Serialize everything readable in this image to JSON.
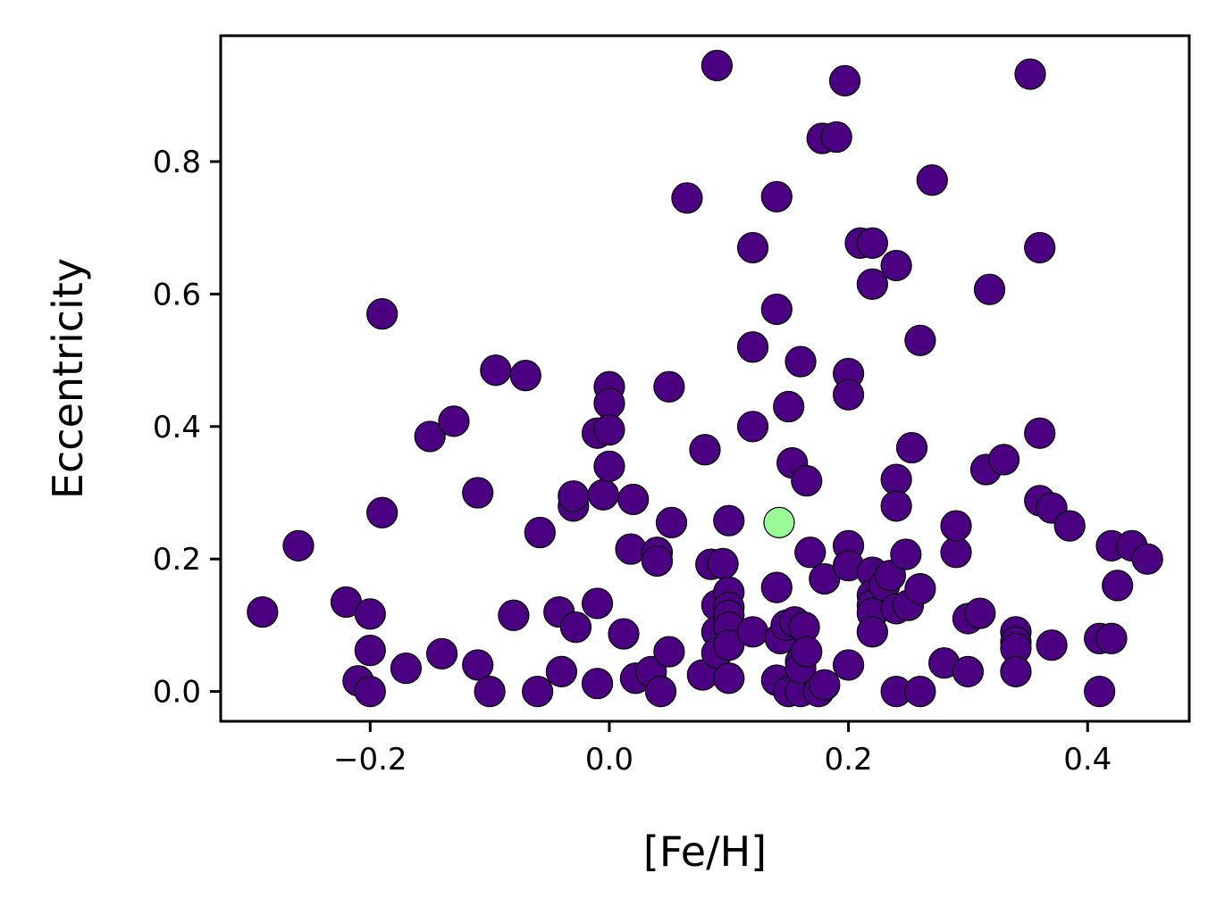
{
  "chart_data": {
    "type": "scatter",
    "title": "",
    "xlabel": "[Fe/H]",
    "ylabel": "Eccentricity",
    "xlim": [
      -0.325,
      0.485
    ],
    "ylim": [
      -0.045,
      0.99
    ],
    "xticks": [
      -0.2,
      0.0,
      0.2,
      0.4
    ],
    "xtick_labels": [
      "−0.2",
      "0.0",
      "0.2",
      "0.4"
    ],
    "yticks": [
      0.0,
      0.2,
      0.4,
      0.6,
      0.8
    ],
    "ytick_labels": [
      "0.0",
      "0.2",
      "0.4",
      "0.6",
      "0.8"
    ],
    "grid": false,
    "series": [
      {
        "color": "#4b0082",
        "points": [
          [
            -0.29,
            0.12
          ],
          [
            -0.26,
            0.22
          ],
          [
            -0.22,
            0.135
          ],
          [
            -0.21,
            0.016
          ],
          [
            -0.2,
            0.0
          ],
          [
            -0.2,
            0.117
          ],
          [
            -0.2,
            0.062
          ],
          [
            -0.19,
            0.57
          ],
          [
            -0.19,
            0.27
          ],
          [
            -0.17,
            0.035
          ],
          [
            -0.15,
            0.385
          ],
          [
            -0.14,
            0.057
          ],
          [
            -0.13,
            0.408
          ],
          [
            -0.11,
            0.3
          ],
          [
            -0.11,
            0.04
          ],
          [
            -0.1,
            0.0
          ],
          [
            -0.095,
            0.485
          ],
          [
            -0.08,
            0.115
          ],
          [
            -0.07,
            0.477
          ],
          [
            -0.06,
            0.0
          ],
          [
            -0.058,
            0.24
          ],
          [
            -0.042,
            0.12
          ],
          [
            -0.04,
            0.03
          ],
          [
            -0.028,
            0.097
          ],
          [
            -0.03,
            0.28
          ],
          [
            -0.03,
            0.295
          ],
          [
            -0.01,
            0.133
          ],
          [
            -0.01,
            0.012
          ],
          [
            -0.01,
            0.39
          ],
          [
            -0.005,
            0.297
          ],
          [
            0.0,
            0.46
          ],
          [
            0.0,
            0.435
          ],
          [
            0.0,
            0.395
          ],
          [
            0.0,
            0.34
          ],
          [
            0.012,
            0.087
          ],
          [
            0.018,
            0.215
          ],
          [
            0.02,
            0.29
          ],
          [
            0.022,
            0.02
          ],
          [
            0.035,
            0.03
          ],
          [
            0.04,
            0.21
          ],
          [
            0.04,
            0.197
          ],
          [
            0.043,
            0.0
          ],
          [
            0.05,
            0.46
          ],
          [
            0.05,
            0.06
          ],
          [
            0.052,
            0.255
          ],
          [
            0.065,
            0.745
          ],
          [
            0.078,
            0.025
          ],
          [
            0.08,
            0.365
          ],
          [
            0.085,
            0.192
          ],
          [
            0.09,
            0.945
          ],
          [
            0.09,
            0.13
          ],
          [
            0.09,
            0.09
          ],
          [
            0.09,
            0.058
          ],
          [
            0.095,
            0.193
          ],
          [
            0.1,
            0.258
          ],
          [
            0.1,
            0.15
          ],
          [
            0.1,
            0.127
          ],
          [
            0.1,
            0.115
          ],
          [
            0.1,
            0.097
          ],
          [
            0.1,
            0.07
          ],
          [
            0.1,
            0.02
          ],
          [
            0.12,
            0.67
          ],
          [
            0.12,
            0.52
          ],
          [
            0.12,
            0.4
          ],
          [
            0.12,
            0.09
          ],
          [
            0.14,
            0.747
          ],
          [
            0.14,
            0.577
          ],
          [
            0.14,
            0.157
          ],
          [
            0.14,
            0.017
          ],
          [
            0.143,
            0.08
          ],
          [
            0.148,
            0.1
          ],
          [
            0.15,
            0.0
          ],
          [
            0.15,
            0.43
          ],
          [
            0.153,
            0.345
          ],
          [
            0.155,
            0.105
          ],
          [
            0.16,
            0.498
          ],
          [
            0.16,
            0.0
          ],
          [
            0.16,
            0.045
          ],
          [
            0.16,
            0.035
          ],
          [
            0.163,
            0.097
          ],
          [
            0.165,
            0.318
          ],
          [
            0.165,
            0.06
          ],
          [
            0.168,
            0.21
          ],
          [
            0.175,
            0.0
          ],
          [
            0.178,
            0.835
          ],
          [
            0.18,
            0.01
          ],
          [
            0.18,
            0.17
          ],
          [
            0.19,
            0.837
          ],
          [
            0.197,
            0.922
          ],
          [
            0.2,
            0.48
          ],
          [
            0.2,
            0.448
          ],
          [
            0.2,
            0.22
          ],
          [
            0.2,
            0.19
          ],
          [
            0.2,
            0.04
          ],
          [
            0.21,
            0.677
          ],
          [
            0.22,
            0.677
          ],
          [
            0.22,
            0.615
          ],
          [
            0.22,
            0.18
          ],
          [
            0.22,
            0.145
          ],
          [
            0.22,
            0.13
          ],
          [
            0.22,
            0.118
          ],
          [
            0.22,
            0.09
          ],
          [
            0.23,
            0.16
          ],
          [
            0.235,
            0.175
          ],
          [
            0.24,
            0.643
          ],
          [
            0.24,
            0.32
          ],
          [
            0.24,
            0.28
          ],
          [
            0.24,
            0.125
          ],
          [
            0.24,
            0.0
          ],
          [
            0.248,
            0.207
          ],
          [
            0.25,
            0.13
          ],
          [
            0.253,
            0.368
          ],
          [
            0.26,
            0.53
          ],
          [
            0.26,
            0.155
          ],
          [
            0.26,
            0.0
          ],
          [
            0.27,
            0.772
          ],
          [
            0.28,
            0.043
          ],
          [
            0.29,
            0.21
          ],
          [
            0.29,
            0.25
          ],
          [
            0.3,
            0.11
          ],
          [
            0.3,
            0.03
          ],
          [
            0.31,
            0.118
          ],
          [
            0.315,
            0.335
          ],
          [
            0.318,
            0.607
          ],
          [
            0.33,
            0.35
          ],
          [
            0.34,
            0.09
          ],
          [
            0.34,
            0.075
          ],
          [
            0.34,
            0.065
          ],
          [
            0.34,
            0.03
          ],
          [
            0.352,
            0.932
          ],
          [
            0.36,
            0.67
          ],
          [
            0.36,
            0.39
          ],
          [
            0.36,
            0.288
          ],
          [
            0.37,
            0.277
          ],
          [
            0.37,
            0.07
          ],
          [
            0.385,
            0.25
          ],
          [
            0.41,
            0.08
          ],
          [
            0.41,
            0.0
          ],
          [
            0.42,
            0.22
          ],
          [
            0.42,
            0.08
          ],
          [
            0.425,
            0.16
          ],
          [
            0.437,
            0.22
          ],
          [
            0.45,
            0.2
          ]
        ]
      },
      {
        "color": "#98fb98",
        "points": [
          [
            0.142,
            0.255
          ]
        ]
      }
    ]
  }
}
